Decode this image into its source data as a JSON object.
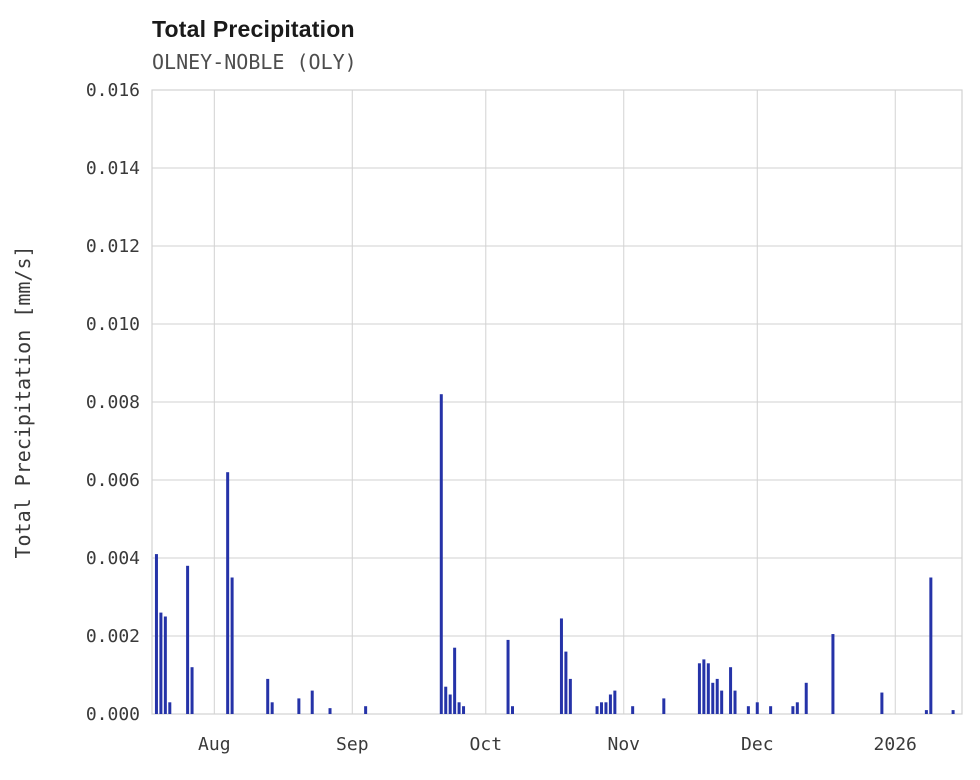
{
  "header": {
    "title": "Total Precipitation",
    "subtitle": "OLNEY-NOBLE (OLY)"
  },
  "chart_data": {
    "type": "bar",
    "title": "Total Precipitation",
    "subtitle": "OLNEY-NOBLE (OLY)",
    "xlabel": "",
    "ylabel": "Total Precipitation [mm/s]",
    "ylim": [
      0,
      0.016
    ],
    "ytick_step": 0.002,
    "ytick_decimals": 3,
    "grid": true,
    "grid_color": "#d2d2d2",
    "bar_color": "#2533a8",
    "x_domain": [
      "2025-07-18",
      "2026-01-16"
    ],
    "x_ticks": [
      {
        "date": "2025-08-01",
        "label": "Aug"
      },
      {
        "date": "2025-09-01",
        "label": "Sep"
      },
      {
        "date": "2025-10-01",
        "label": "Oct"
      },
      {
        "date": "2025-11-01",
        "label": "Nov"
      },
      {
        "date": "2025-12-01",
        "label": "Dec"
      },
      {
        "date": "2026-01-01",
        "label": "2026"
      }
    ],
    "points": [
      {
        "date": "2025-07-19",
        "value": 0.0041
      },
      {
        "date": "2025-07-20",
        "value": 0.0026
      },
      {
        "date": "2025-07-21",
        "value": 0.0025
      },
      {
        "date": "2025-07-22",
        "value": 0.0003
      },
      {
        "date": "2025-07-26",
        "value": 0.0038
      },
      {
        "date": "2025-07-27",
        "value": 0.0012
      },
      {
        "date": "2025-08-04",
        "value": 0.0062
      },
      {
        "date": "2025-08-05",
        "value": 0.0035
      },
      {
        "date": "2025-08-13",
        "value": 0.0009
      },
      {
        "date": "2025-08-14",
        "value": 0.0003
      },
      {
        "date": "2025-08-20",
        "value": 0.0004
      },
      {
        "date": "2025-08-23",
        "value": 0.0006
      },
      {
        "date": "2025-08-27",
        "value": 0.00015
      },
      {
        "date": "2025-09-04",
        "value": 0.0002
      },
      {
        "date": "2025-09-21",
        "value": 0.0082
      },
      {
        "date": "2025-09-22",
        "value": 0.0007
      },
      {
        "date": "2025-09-23",
        "value": 0.0005
      },
      {
        "date": "2025-09-24",
        "value": 0.0017
      },
      {
        "date": "2025-09-25",
        "value": 0.0003
      },
      {
        "date": "2025-09-26",
        "value": 0.0002
      },
      {
        "date": "2025-10-06",
        "value": 0.0019
      },
      {
        "date": "2025-10-07",
        "value": 0.0002
      },
      {
        "date": "2025-10-18",
        "value": 0.00245
      },
      {
        "date": "2025-10-19",
        "value": 0.0016
      },
      {
        "date": "2025-10-20",
        "value": 0.0009
      },
      {
        "date": "2025-10-26",
        "value": 0.0002
      },
      {
        "date": "2025-10-27",
        "value": 0.0003
      },
      {
        "date": "2025-10-28",
        "value": 0.0003
      },
      {
        "date": "2025-10-29",
        "value": 0.0005
      },
      {
        "date": "2025-10-30",
        "value": 0.0006
      },
      {
        "date": "2025-11-03",
        "value": 0.0002
      },
      {
        "date": "2025-11-10",
        "value": 0.0004
      },
      {
        "date": "2025-11-18",
        "value": 0.0013
      },
      {
        "date": "2025-11-19",
        "value": 0.0014
      },
      {
        "date": "2025-11-20",
        "value": 0.0013
      },
      {
        "date": "2025-11-21",
        "value": 0.0008
      },
      {
        "date": "2025-11-22",
        "value": 0.0009
      },
      {
        "date": "2025-11-23",
        "value": 0.0006
      },
      {
        "date": "2025-11-25",
        "value": 0.0012
      },
      {
        "date": "2025-11-26",
        "value": 0.0006
      },
      {
        "date": "2025-11-29",
        "value": 0.0002
      },
      {
        "date": "2025-12-01",
        "value": 0.0003
      },
      {
        "date": "2025-12-04",
        "value": 0.0002
      },
      {
        "date": "2025-12-09",
        "value": 0.0002
      },
      {
        "date": "2025-12-10",
        "value": 0.0003
      },
      {
        "date": "2025-12-12",
        "value": 0.0008
      },
      {
        "date": "2025-12-18",
        "value": 0.00205
      },
      {
        "date": "2025-12-29",
        "value": 0.00055
      },
      {
        "date": "2026-01-08",
        "value": 0.0001
      },
      {
        "date": "2026-01-09",
        "value": 0.0035
      },
      {
        "date": "2026-01-14",
        "value": 0.0001
      }
    ]
  }
}
